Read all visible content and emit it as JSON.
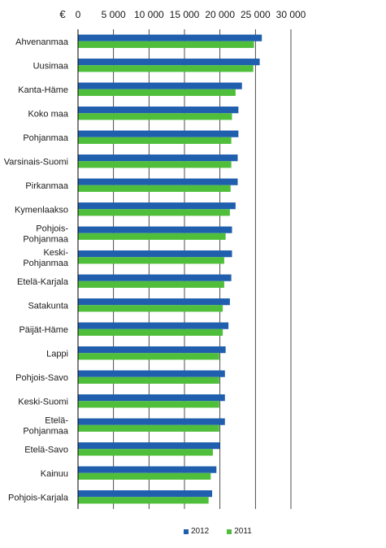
{
  "chart_data": {
    "type": "bar",
    "orientation": "horizontal",
    "unit_label": "€",
    "categories": [
      "Ahvenanmaa",
      "Uusimaa",
      "Kanta-Häme",
      "Koko maa",
      "Pohjanmaa",
      "Varsinais-Suomi",
      "Pirkanmaa",
      "Kymenlaakso",
      "Pohjois-Pohjanmaa",
      "Keski-Pohjanmaa",
      "Etelä-Karjala",
      "Satakunta",
      "Päijät-Häme",
      "Lappi",
      "Pohjois-Savo",
      "Keski-Suomi",
      "Etelä-Pohjanmaa",
      "Etelä-Savo",
      "Kainuu",
      "Pohjois-Karjala"
    ],
    "category_lines": [
      [
        "Ahvenanmaa"
      ],
      [
        "Uusimaa"
      ],
      [
        "Kanta-Häme"
      ],
      [
        "Koko maa"
      ],
      [
        "Pohjanmaa"
      ],
      [
        "Varsinais-Suomi"
      ],
      [
        "Pirkanmaa"
      ],
      [
        "Kymenlaakso"
      ],
      [
        "Pohjois-",
        "Pohjanmaa"
      ],
      [
        "Keski-",
        "Pohjanmaa"
      ],
      [
        "Etelä-Karjala"
      ],
      [
        "Satakunta"
      ],
      [
        "Päijät-Häme"
      ],
      [
        "Lappi"
      ],
      [
        "Pohjois-Savo"
      ],
      [
        "Keski-Suomi"
      ],
      [
        "Etelä-",
        "Pohjanmaa"
      ],
      [
        "Etelä-Savo"
      ],
      [
        "Kainuu"
      ],
      [
        "Pohjois-Karjala"
      ]
    ],
    "series": [
      {
        "name": "2012",
        "color": "#1f5fae",
        "values": [
          25900,
          25600,
          23100,
          22600,
          22600,
          22500,
          22500,
          22200,
          21700,
          21700,
          21600,
          21400,
          21200,
          20800,
          20700,
          20700,
          20700,
          20000,
          19500,
          18900
        ]
      },
      {
        "name": "2011",
        "color": "#4fbe3b",
        "values": [
          24800,
          24700,
          22200,
          21700,
          21600,
          21600,
          21500,
          21400,
          20800,
          20600,
          20600,
          20400,
          20400,
          19900,
          19900,
          19900,
          19900,
          19000,
          18700,
          18400
        ]
      }
    ],
    "xlim": [
      0,
      30000
    ],
    "ticks": [
      0,
      5000,
      10000,
      15000,
      20000,
      25000,
      30000
    ],
    "tick_labels": [
      "0",
      "5 000",
      "10 000",
      "15 000",
      "20 000",
      "25 000",
      "30 000"
    ],
    "grid": true,
    "legend_position": "bottom-center"
  }
}
